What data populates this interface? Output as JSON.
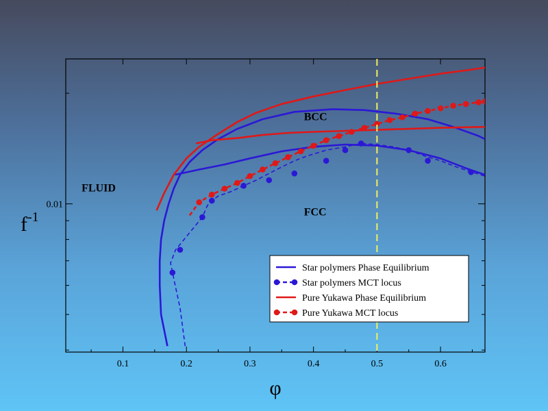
{
  "chart_data": {
    "type": "line",
    "title": "",
    "xlabel": "φ",
    "ylabel": "f",
    "ylabel_superscript": "-1",
    "xlim": [
      0.01,
      0.67
    ],
    "ylim": [
      0.00395,
      0.0248
    ],
    "yscale": "log",
    "xticks": [
      0.1,
      0.2,
      0.3,
      0.4,
      0.5,
      0.6
    ],
    "xtick_labels": [
      "0.1",
      "0.2",
      "0.3",
      "0.4",
      "0.5",
      "0.6"
    ],
    "yticks": [
      0.01
    ],
    "ytick_labels": [
      "0.01"
    ],
    "reference_line": {
      "x": 0.5,
      "color": "#f0f060",
      "style": "dashed"
    },
    "annotations": [
      {
        "text": "FLUID",
        "x": 0.035,
        "y": 0.0108
      },
      {
        "text": "BCC",
        "x": 0.385,
        "y": 0.0169
      },
      {
        "text": "FCC",
        "x": 0.385,
        "y": 0.0093
      }
    ],
    "legend_position": "bottom-right",
    "series": [
      {
        "name": "Star polymers  Phase Equilibrium",
        "color": "#2b18d6",
        "style": "solid",
        "markers": false,
        "branches": [
          [
            [
              0.17,
              0.0041
            ],
            [
              0.16,
              0.005
            ],
            [
              0.158,
              0.006
            ],
            [
              0.158,
              0.007
            ],
            [
              0.16,
              0.008
            ],
            [
              0.165,
              0.009
            ],
            [
              0.172,
              0.01
            ],
            [
              0.18,
              0.011
            ],
            [
              0.19,
              0.012
            ],
            [
              0.205,
              0.013
            ],
            [
              0.225,
              0.014
            ],
            [
              0.25,
              0.015
            ],
            [
              0.28,
              0.016
            ],
            [
              0.32,
              0.017
            ],
            [
              0.37,
              0.0178
            ],
            [
              0.43,
              0.0181
            ],
            [
              0.48,
              0.018
            ],
            [
              0.53,
              0.0176
            ],
            [
              0.58,
              0.017
            ],
            [
              0.62,
              0.0162
            ],
            [
              0.66,
              0.0153
            ],
            [
              0.67,
              0.015
            ]
          ],
          [
            [
              0.182,
              0.012
            ],
            [
              0.22,
              0.0124
            ],
            [
              0.26,
              0.0128
            ],
            [
              0.3,
              0.0133
            ],
            [
              0.35,
              0.0139
            ],
            [
              0.4,
              0.0143
            ],
            [
              0.45,
              0.0145
            ],
            [
              0.5,
              0.0144
            ],
            [
              0.55,
              0.014
            ],
            [
              0.6,
              0.0133
            ],
            [
              0.64,
              0.0125
            ],
            [
              0.67,
              0.012
            ]
          ]
        ]
      },
      {
        "name": "Star polymers MCT locus",
        "color": "#2b18d6",
        "style": "dashed",
        "markers": true,
        "points": [
          [
            0.198,
            0.0041
          ],
          [
            0.19,
            0.0052
          ],
          [
            0.178,
            0.0065
          ],
          [
            0.175,
            0.0069
          ],
          [
            0.183,
            0.0075
          ],
          [
            0.225,
            0.0092
          ],
          [
            0.233,
            0.0099
          ],
          [
            0.24,
            0.0102
          ],
          [
            0.25,
            0.0105
          ],
          [
            0.27,
            0.0108
          ],
          [
            0.29,
            0.0112
          ],
          [
            0.31,
            0.0116
          ],
          [
            0.33,
            0.0121
          ],
          [
            0.35,
            0.0126
          ],
          [
            0.37,
            0.0131
          ],
          [
            0.39,
            0.0135
          ],
          [
            0.42,
            0.014
          ],
          [
            0.45,
            0.0143
          ],
          [
            0.475,
            0.0146
          ],
          [
            0.5,
            0.0145
          ],
          [
            0.525,
            0.0143
          ],
          [
            0.55,
            0.014
          ],
          [
            0.575,
            0.0135
          ],
          [
            0.6,
            0.0131
          ],
          [
            0.625,
            0.0126
          ],
          [
            0.65,
            0.0122
          ],
          [
            0.67,
            0.0119
          ]
        ],
        "marker_points": [
          [
            0.178,
            0.0065
          ],
          [
            0.19,
            0.0075
          ],
          [
            0.225,
            0.0092
          ],
          [
            0.24,
            0.0102
          ],
          [
            0.29,
            0.0112
          ],
          [
            0.33,
            0.0116
          ],
          [
            0.37,
            0.0121
          ],
          [
            0.42,
            0.0131
          ],
          [
            0.45,
            0.014
          ],
          [
            0.475,
            0.0146
          ],
          [
            0.55,
            0.014
          ],
          [
            0.58,
            0.0131
          ],
          [
            0.648,
            0.0122
          ]
        ]
      },
      {
        "name": "Pure Yukawa  Phase Equilibrium",
        "color": "#e01818",
        "style": "solid",
        "markers": false,
        "branches": [
          [
            [
              0.153,
              0.0096
            ],
            [
              0.165,
              0.0107
            ],
            [
              0.18,
              0.012
            ],
            [
              0.2,
              0.0133
            ],
            [
              0.22,
              0.0143
            ],
            [
              0.25,
              0.0155
            ],
            [
              0.28,
              0.0167
            ],
            [
              0.31,
              0.0177
            ],
            [
              0.35,
              0.0187
            ],
            [
              0.4,
              0.0196
            ],
            [
              0.45,
              0.0204
            ],
            [
              0.5,
              0.0212
            ],
            [
              0.55,
              0.0219
            ],
            [
              0.6,
              0.0226
            ],
            [
              0.65,
              0.0232
            ],
            [
              0.67,
              0.0235
            ]
          ],
          [
            [
              0.215,
              0.0146
            ],
            [
              0.24,
              0.0149
            ],
            [
              0.28,
              0.0151
            ],
            [
              0.32,
              0.0154
            ],
            [
              0.36,
              0.0156
            ],
            [
              0.4,
              0.0157
            ],
            [
              0.45,
              0.0158
            ],
            [
              0.5,
              0.0159
            ],
            [
              0.55,
              0.016
            ],
            [
              0.6,
              0.0161
            ],
            [
              0.67,
              0.0162
            ]
          ]
        ]
      },
      {
        "name": "Pure Yukawa  MCT locus",
        "color": "#e01818",
        "style": "dashed",
        "markers": true,
        "points": [
          [
            0.205,
            0.0093
          ],
          [
            0.22,
            0.0101
          ],
          [
            0.24,
            0.0106
          ],
          [
            0.26,
            0.011
          ],
          [
            0.28,
            0.0114
          ],
          [
            0.3,
            0.0119
          ],
          [
            0.32,
            0.0124
          ],
          [
            0.34,
            0.0129
          ],
          [
            0.36,
            0.0134
          ],
          [
            0.38,
            0.0139
          ],
          [
            0.4,
            0.0144
          ],
          [
            0.42,
            0.0149
          ],
          [
            0.44,
            0.0153
          ],
          [
            0.46,
            0.0157
          ],
          [
            0.48,
            0.0161
          ],
          [
            0.5,
            0.0165
          ],
          [
            0.52,
            0.0169
          ],
          [
            0.54,
            0.0172
          ],
          [
            0.56,
            0.0176
          ],
          [
            0.58,
            0.0179
          ],
          [
            0.6,
            0.0182
          ],
          [
            0.62,
            0.0185
          ],
          [
            0.64,
            0.0187
          ],
          [
            0.66,
            0.0189
          ],
          [
            0.67,
            0.019
          ]
        ]
      }
    ]
  }
}
